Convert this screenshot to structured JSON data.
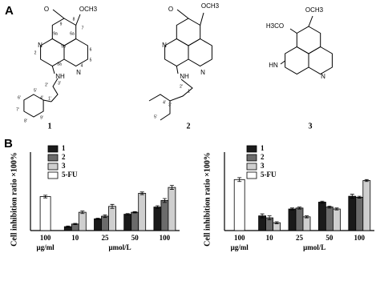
{
  "panels": [
    "A",
    "B"
  ],
  "structures": [
    {
      "label": "1",
      "atoms": [
        "O",
        "OCH3",
        "N",
        "N",
        "NH",
        "9",
        "8",
        "7",
        "6",
        "5",
        "4",
        "2",
        "9a",
        "9b",
        "6a",
        "3a",
        "1'",
        "2'",
        "3'",
        "4'",
        "5'",
        "6'",
        "7'",
        "8'",
        "9'"
      ]
    },
    {
      "label": "2",
      "atoms": [
        "O",
        "OCH3",
        "N",
        "N",
        "NH",
        "1'",
        "2'",
        "3'",
        "4'",
        "5'"
      ]
    },
    {
      "label": "3",
      "atoms": [
        "H3CO",
        "OCH3",
        "HN",
        "N"
      ]
    }
  ],
  "chart_data": [
    {
      "type": "bar",
      "ylabel": "Cell inhibition ratio ×100%",
      "categories": [
        "100",
        "10",
        "25",
        "50",
        "100"
      ],
      "xlabels": [
        "μg/ml",
        "μmol/L"
      ],
      "ylim": [
        0,
        1.2
      ],
      "series": [
        {
          "name": "1",
          "color": "#1a1a1a",
          "values": [
            null,
            0.06,
            0.18,
            0.25,
            0.36
          ],
          "errors": [
            null,
            0.01,
            0.01,
            0.01,
            0.02
          ]
        },
        {
          "name": "2",
          "color": "#6b6b6b",
          "values": [
            null,
            0.1,
            0.22,
            0.28,
            0.46
          ],
          "errors": [
            null,
            0.01,
            0.02,
            0.01,
            0.03
          ]
        },
        {
          "name": "3",
          "color": "#cfcfcf",
          "values": [
            null,
            0.28,
            0.37,
            0.57,
            0.66
          ],
          "errors": [
            null,
            0.02,
            0.03,
            0.02,
            0.03
          ]
        },
        {
          "name": "5-FU",
          "color": "#ffffff",
          "values": [
            0.52,
            null,
            null,
            null,
            null
          ],
          "errors": [
            0.02,
            null,
            null,
            null,
            null
          ]
        }
      ]
    },
    {
      "type": "bar",
      "ylabel": "Cell inhibition ratio ×100%",
      "categories": [
        "100",
        "10",
        "25",
        "50",
        "100"
      ],
      "xlabels": [
        "μg/ml",
        "μmol/L"
      ],
      "ylim": [
        0,
        0.8
      ],
      "series": [
        {
          "name": "1",
          "color": "#1a1a1a",
          "values": [
            null,
            0.15,
            0.22,
            0.29,
            0.35
          ],
          "errors": [
            null,
            0.02,
            0.01,
            0.01,
            0.02
          ]
        },
        {
          "name": "2",
          "color": "#6b6b6b",
          "values": [
            null,
            0.13,
            0.23,
            0.24,
            0.34
          ],
          "errors": [
            null,
            0.02,
            0.01,
            0.01,
            0.01
          ]
        },
        {
          "name": "3",
          "color": "#cfcfcf",
          "values": [
            null,
            0.08,
            0.14,
            0.22,
            0.51
          ],
          "errors": [
            null,
            0.01,
            0.01,
            0.01,
            0.01
          ]
        },
        {
          "name": "5-FU",
          "color": "#ffffff",
          "values": [
            0.52,
            null,
            null,
            null,
            null
          ],
          "errors": [
            0.02,
            null,
            null,
            null,
            null
          ]
        }
      ]
    }
  ]
}
